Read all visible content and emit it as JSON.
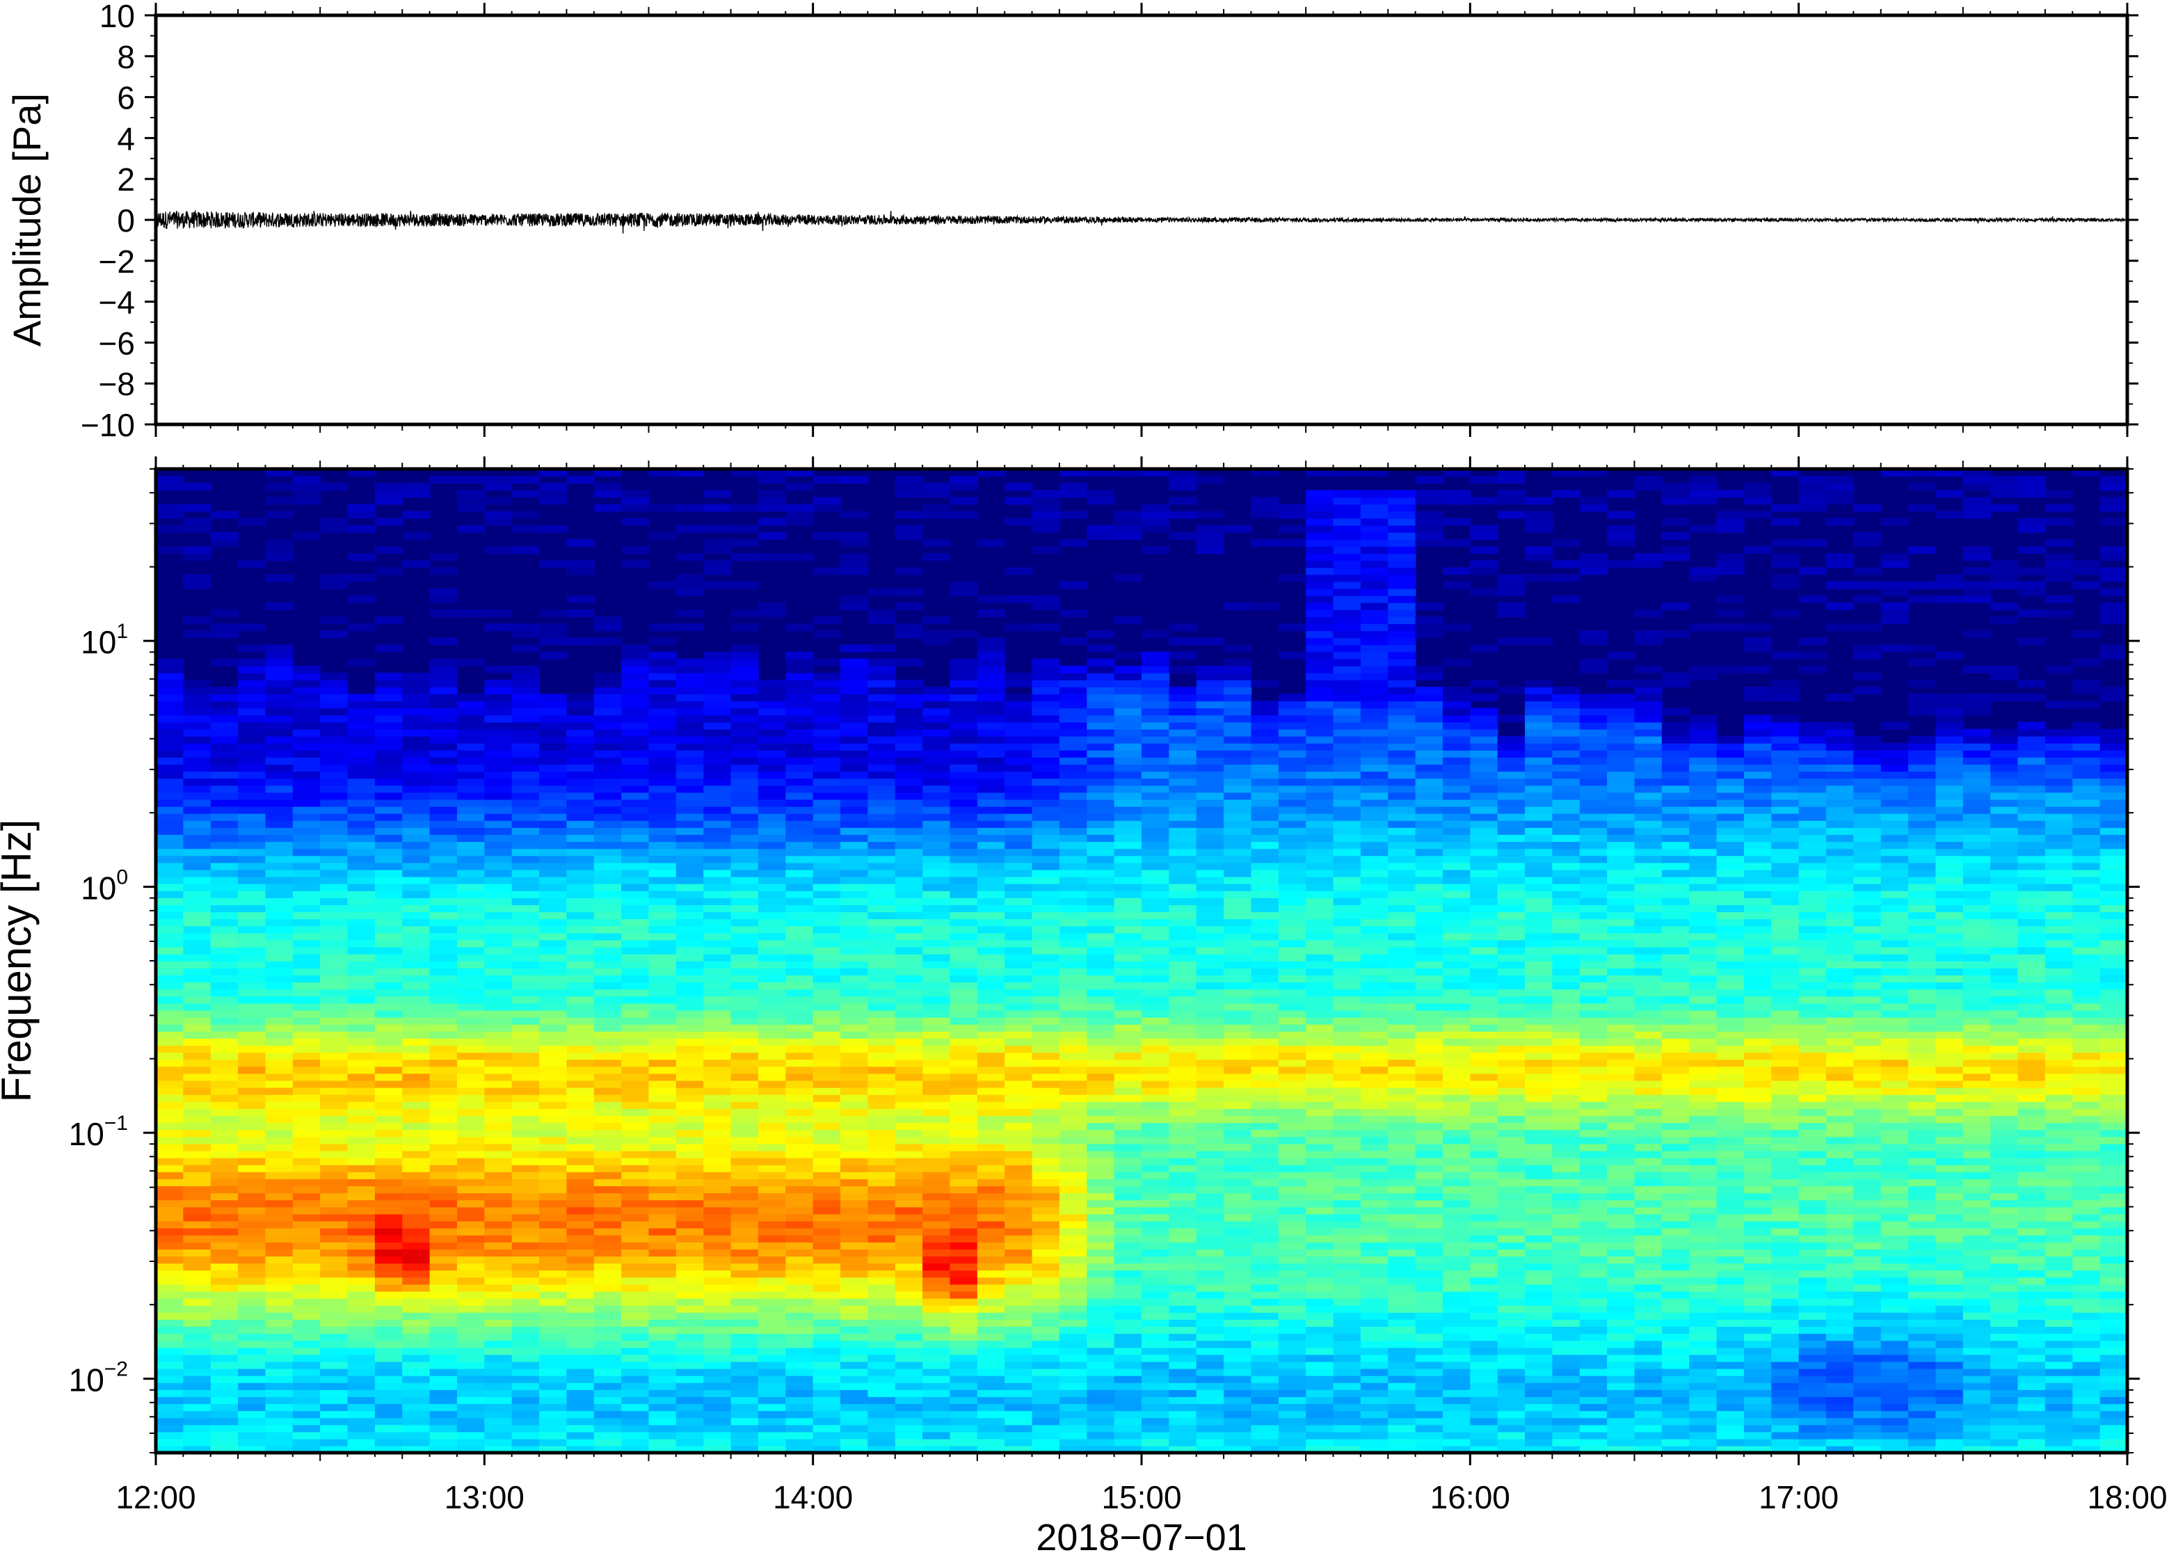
{
  "chart_data": [
    {
      "type": "line",
      "title": "",
      "ylabel": "Amplitude [Pa]",
      "ylim": [
        -10,
        10
      ],
      "yticks": [
        10,
        8,
        6,
        4,
        2,
        0,
        -2,
        -4,
        -6,
        -8,
        -10
      ],
      "ytick_labels": [
        "10",
        "8",
        "6",
        "4",
        "2",
        "0",
        "−2",
        "−4",
        "−6",
        "−8",
        "−10"
      ],
      "xlim": [
        "12:00",
        "18:00"
      ],
      "grid": false,
      "series": [
        {
          "x_hours": [
            12.0,
            12.5,
            13.0,
            13.5,
            14.0,
            14.5,
            15.0,
            15.5,
            16.0,
            16.5,
            17.0,
            17.5,
            18.0
          ],
          "envelope_pa": [
            0.45,
            0.35,
            0.3,
            0.35,
            0.25,
            0.2,
            0.12,
            0.1,
            0.08,
            0.08,
            0.08,
            0.08,
            0.08
          ],
          "color": "#000000"
        }
      ]
    },
    {
      "type": "heatmap",
      "title": "",
      "ylabel": "Frequency [Hz]",
      "xlabel": "2018−07−01",
      "yscale": "log",
      "ylim_hz": [
        0.005,
        50
      ],
      "yticks_hz": [
        10,
        1,
        0.1,
        0.01
      ],
      "ytick_labels": [
        {
          "base": "10",
          "exp": "1"
        },
        {
          "base": "10",
          "exp": "0"
        },
        {
          "base": "10",
          "exp": "−1"
        },
        {
          "base": "10",
          "exp": "−2"
        }
      ],
      "xticks": [
        "12:00",
        "13:00",
        "14:00",
        "15:00",
        "16:00",
        "17:00",
        "18:00"
      ],
      "colormap": "jet",
      "grid": false
    }
  ]
}
